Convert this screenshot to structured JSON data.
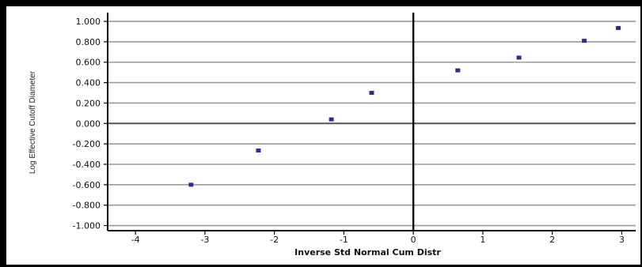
{
  "chart_data": {
    "type": "scatter",
    "title": "",
    "xlabel": "Inverse Std Normal Cum Distr",
    "ylabel": "Log Effective Cutoff Diameter",
    "xlim": [
      -4.4,
      3.2
    ],
    "ylim": [
      -1.05,
      1.07
    ],
    "xticks": [
      "-4",
      "-3",
      "-2",
      "-1",
      "0",
      "1",
      "2",
      "3"
    ],
    "yticks": [
      "1.000",
      "0.800",
      "0.600",
      "0.400",
      "0.200",
      "0.000",
      "-0.200",
      "-0.400",
      "-0.600",
      "-0.800",
      "-1.000"
    ],
    "grid": "horizontal",
    "series": [
      {
        "color": "#2b2f8c",
        "x": [
          -3.2,
          -2.23,
          -1.18,
          -0.6,
          0.64,
          1.52,
          2.46,
          2.95
        ],
        "y": [
          -0.6,
          -0.265,
          0.04,
          0.3,
          0.52,
          0.645,
          0.81,
          0.935
        ]
      }
    ]
  }
}
